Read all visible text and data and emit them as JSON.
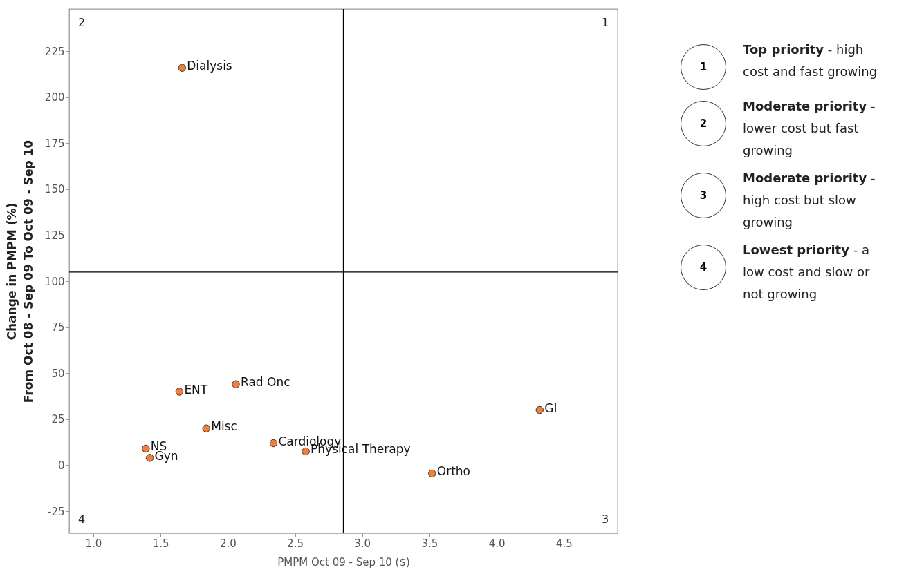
{
  "chart_data": {
    "type": "scatter",
    "xlabel": "PMPM Oct 09 - Sep 10 ($)",
    "ylabel": "Change in PMPM (%)\nFrom Oct 08 - Sep 09  To Oct 09 - Sep 10",
    "marker": "circle",
    "xlim": [
      0.82,
      4.9
    ],
    "xticks": [
      {
        "value": 1,
        "label": "1.0"
      },
      {
        "value": 1.5,
        "label": "1.5"
      },
      {
        "value": 2,
        "label": "2.0"
      },
      {
        "value": 2.5,
        "label": "2.5"
      },
      {
        "value": 3,
        "label": "3.0"
      },
      {
        "value": 3.5,
        "label": "3.5"
      },
      {
        "value": 4,
        "label": "4.0"
      },
      {
        "value": 4.5,
        "label": "4.5"
      }
    ],
    "ylim": [
      -37,
      248
    ],
    "yticks": [
      -25,
      0,
      25,
      50,
      75,
      100,
      125,
      150,
      175,
      200,
      225
    ],
    "series": [
      {
        "name": "Dialysis",
        "color": "#f07f3c",
        "x": [
          1.66
        ],
        "values": [
          216
        ]
      },
      {
        "name": "ENT",
        "color": "#f07f3c",
        "x": [
          1.64
        ],
        "values": [
          40
        ]
      },
      {
        "name": "Rad Onc",
        "color": "#f07f3c",
        "x": [
          2.06
        ],
        "values": [
          44
        ]
      },
      {
        "name": "Misc",
        "color": "#f07f3c",
        "x": [
          1.84
        ],
        "values": [
          20
        ]
      },
      {
        "name": "NS",
        "color": "#f07f3c",
        "x": [
          1.39
        ],
        "values": [
          9
        ]
      },
      {
        "name": "Gyn",
        "color": "#f07f3c",
        "x": [
          1.42
        ],
        "values": [
          4
        ]
      },
      {
        "name": "Cardiology",
        "color": "#f07f3c",
        "x": [
          2.34
        ],
        "values": [
          12
        ]
      },
      {
        "name": "Physical Therapy",
        "color": "#f07f3c",
        "x": [
          2.58
        ],
        "values": [
          7.5
        ]
      },
      {
        "name": "Ortho",
        "color": "#f07f3c",
        "x": [
          3.52
        ],
        "values": [
          -4.5
        ]
      },
      {
        "name": "GI",
        "color": "#f07f3c",
        "x": [
          4.32
        ],
        "values": [
          30
        ]
      }
    ],
    "ref_lines": [
      {
        "axis": "x",
        "value": 2.86,
        "color": "#000000"
      },
      {
        "axis": "y",
        "value": 105,
        "color": "#000000"
      }
    ],
    "annotations": [
      "1",
      "2",
      "3",
      "4",
      "Top priority - high cost and fast growing",
      "Moderate priority - lower cost but fast growing",
      "Moderate priority - high cost but slow growing",
      "Lowest priority - a low cost and slow or not growing"
    ]
  }
}
